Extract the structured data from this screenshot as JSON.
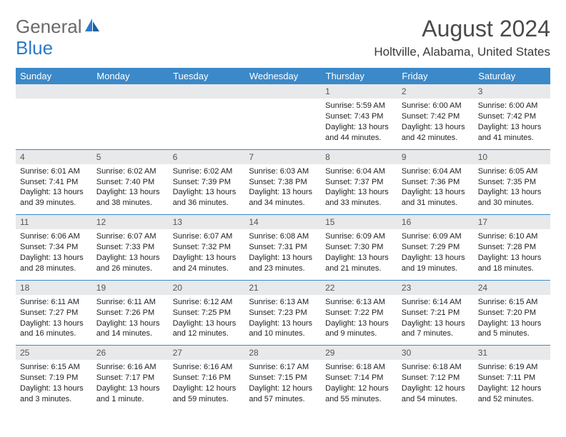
{
  "brand": {
    "part1": "General",
    "part2": "Blue"
  },
  "title": "August 2024",
  "location": "Holtville, Alabama, United States",
  "colors": {
    "header_bg": "#3b89c9",
    "daynum_bg": "#e8e9eb",
    "rule": "#3b89c9",
    "text": "#333333"
  },
  "weekdays": [
    "Sunday",
    "Monday",
    "Tuesday",
    "Wednesday",
    "Thursday",
    "Friday",
    "Saturday"
  ],
  "weeks": [
    [
      null,
      null,
      null,
      null,
      {
        "n": "1",
        "sr": "Sunrise: 5:59 AM",
        "ss": "Sunset: 7:43 PM",
        "d1": "Daylight: 13 hours",
        "d2": "and 44 minutes."
      },
      {
        "n": "2",
        "sr": "Sunrise: 6:00 AM",
        "ss": "Sunset: 7:42 PM",
        "d1": "Daylight: 13 hours",
        "d2": "and 42 minutes."
      },
      {
        "n": "3",
        "sr": "Sunrise: 6:00 AM",
        "ss": "Sunset: 7:42 PM",
        "d1": "Daylight: 13 hours",
        "d2": "and 41 minutes."
      }
    ],
    [
      {
        "n": "4",
        "sr": "Sunrise: 6:01 AM",
        "ss": "Sunset: 7:41 PM",
        "d1": "Daylight: 13 hours",
        "d2": "and 39 minutes."
      },
      {
        "n": "5",
        "sr": "Sunrise: 6:02 AM",
        "ss": "Sunset: 7:40 PM",
        "d1": "Daylight: 13 hours",
        "d2": "and 38 minutes."
      },
      {
        "n": "6",
        "sr": "Sunrise: 6:02 AM",
        "ss": "Sunset: 7:39 PM",
        "d1": "Daylight: 13 hours",
        "d2": "and 36 minutes."
      },
      {
        "n": "7",
        "sr": "Sunrise: 6:03 AM",
        "ss": "Sunset: 7:38 PM",
        "d1": "Daylight: 13 hours",
        "d2": "and 34 minutes."
      },
      {
        "n": "8",
        "sr": "Sunrise: 6:04 AM",
        "ss": "Sunset: 7:37 PM",
        "d1": "Daylight: 13 hours",
        "d2": "and 33 minutes."
      },
      {
        "n": "9",
        "sr": "Sunrise: 6:04 AM",
        "ss": "Sunset: 7:36 PM",
        "d1": "Daylight: 13 hours",
        "d2": "and 31 minutes."
      },
      {
        "n": "10",
        "sr": "Sunrise: 6:05 AM",
        "ss": "Sunset: 7:35 PM",
        "d1": "Daylight: 13 hours",
        "d2": "and 30 minutes."
      }
    ],
    [
      {
        "n": "11",
        "sr": "Sunrise: 6:06 AM",
        "ss": "Sunset: 7:34 PM",
        "d1": "Daylight: 13 hours",
        "d2": "and 28 minutes."
      },
      {
        "n": "12",
        "sr": "Sunrise: 6:07 AM",
        "ss": "Sunset: 7:33 PM",
        "d1": "Daylight: 13 hours",
        "d2": "and 26 minutes."
      },
      {
        "n": "13",
        "sr": "Sunrise: 6:07 AM",
        "ss": "Sunset: 7:32 PM",
        "d1": "Daylight: 13 hours",
        "d2": "and 24 minutes."
      },
      {
        "n": "14",
        "sr": "Sunrise: 6:08 AM",
        "ss": "Sunset: 7:31 PM",
        "d1": "Daylight: 13 hours",
        "d2": "and 23 minutes."
      },
      {
        "n": "15",
        "sr": "Sunrise: 6:09 AM",
        "ss": "Sunset: 7:30 PM",
        "d1": "Daylight: 13 hours",
        "d2": "and 21 minutes."
      },
      {
        "n": "16",
        "sr": "Sunrise: 6:09 AM",
        "ss": "Sunset: 7:29 PM",
        "d1": "Daylight: 13 hours",
        "d2": "and 19 minutes."
      },
      {
        "n": "17",
        "sr": "Sunrise: 6:10 AM",
        "ss": "Sunset: 7:28 PM",
        "d1": "Daylight: 13 hours",
        "d2": "and 18 minutes."
      }
    ],
    [
      {
        "n": "18",
        "sr": "Sunrise: 6:11 AM",
        "ss": "Sunset: 7:27 PM",
        "d1": "Daylight: 13 hours",
        "d2": "and 16 minutes."
      },
      {
        "n": "19",
        "sr": "Sunrise: 6:11 AM",
        "ss": "Sunset: 7:26 PM",
        "d1": "Daylight: 13 hours",
        "d2": "and 14 minutes."
      },
      {
        "n": "20",
        "sr": "Sunrise: 6:12 AM",
        "ss": "Sunset: 7:25 PM",
        "d1": "Daylight: 13 hours",
        "d2": "and 12 minutes."
      },
      {
        "n": "21",
        "sr": "Sunrise: 6:13 AM",
        "ss": "Sunset: 7:23 PM",
        "d1": "Daylight: 13 hours",
        "d2": "and 10 minutes."
      },
      {
        "n": "22",
        "sr": "Sunrise: 6:13 AM",
        "ss": "Sunset: 7:22 PM",
        "d1": "Daylight: 13 hours",
        "d2": "and 9 minutes."
      },
      {
        "n": "23",
        "sr": "Sunrise: 6:14 AM",
        "ss": "Sunset: 7:21 PM",
        "d1": "Daylight: 13 hours",
        "d2": "and 7 minutes."
      },
      {
        "n": "24",
        "sr": "Sunrise: 6:15 AM",
        "ss": "Sunset: 7:20 PM",
        "d1": "Daylight: 13 hours",
        "d2": "and 5 minutes."
      }
    ],
    [
      {
        "n": "25",
        "sr": "Sunrise: 6:15 AM",
        "ss": "Sunset: 7:19 PM",
        "d1": "Daylight: 13 hours",
        "d2": "and 3 minutes."
      },
      {
        "n": "26",
        "sr": "Sunrise: 6:16 AM",
        "ss": "Sunset: 7:17 PM",
        "d1": "Daylight: 13 hours",
        "d2": "and 1 minute."
      },
      {
        "n": "27",
        "sr": "Sunrise: 6:16 AM",
        "ss": "Sunset: 7:16 PM",
        "d1": "Daylight: 12 hours",
        "d2": "and 59 minutes."
      },
      {
        "n": "28",
        "sr": "Sunrise: 6:17 AM",
        "ss": "Sunset: 7:15 PM",
        "d1": "Daylight: 12 hours",
        "d2": "and 57 minutes."
      },
      {
        "n": "29",
        "sr": "Sunrise: 6:18 AM",
        "ss": "Sunset: 7:14 PM",
        "d1": "Daylight: 12 hours",
        "d2": "and 55 minutes."
      },
      {
        "n": "30",
        "sr": "Sunrise: 6:18 AM",
        "ss": "Sunset: 7:12 PM",
        "d1": "Daylight: 12 hours",
        "d2": "and 54 minutes."
      },
      {
        "n": "31",
        "sr": "Sunrise: 6:19 AM",
        "ss": "Sunset: 7:11 PM",
        "d1": "Daylight: 12 hours",
        "d2": "and 52 minutes."
      }
    ]
  ]
}
